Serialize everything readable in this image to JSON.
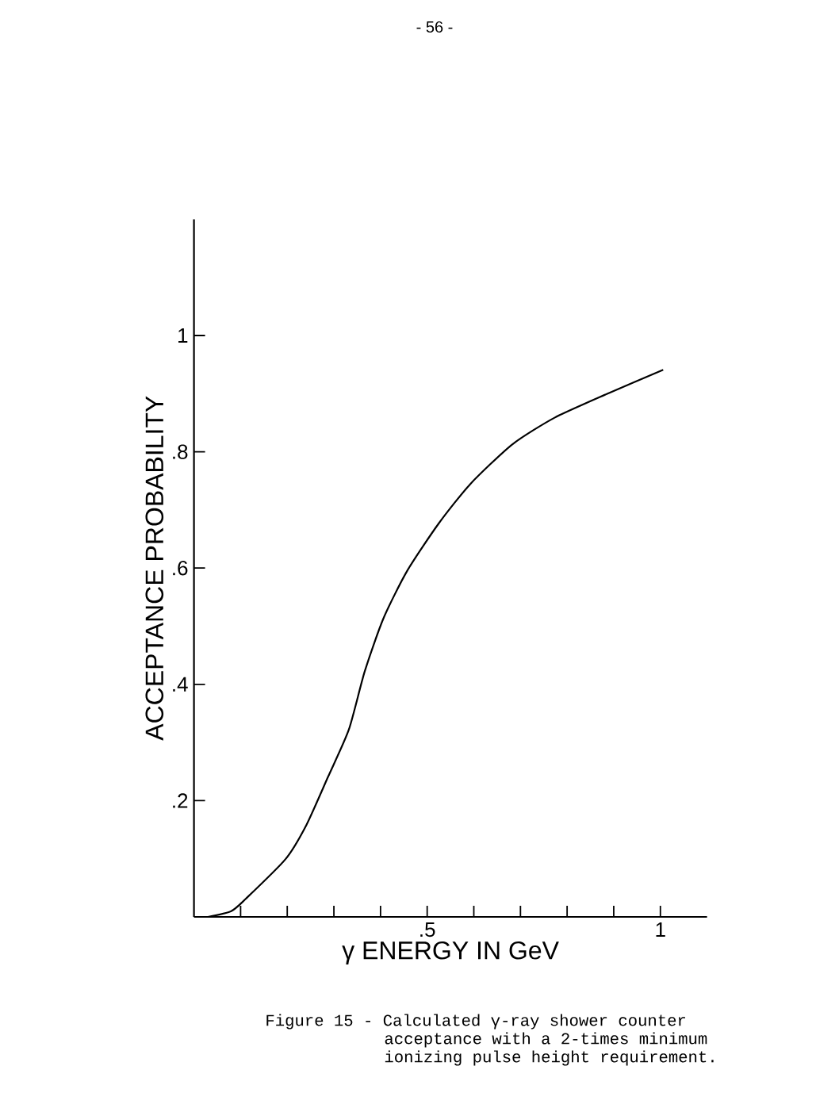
{
  "chart_data": {
    "type": "line",
    "xlabel": "γ ENERGY IN GeV",
    "ylabel": "ACCEPTANCE PROBABILITY",
    "annotations": [
      "- 56 -",
      "Figure 15 - Calculated γ-ray shower counter acceptance with a 2-times minimum ionizing pulse height requirement."
    ],
    "x": [
      0.03,
      0.08,
      0.111,
      0.196,
      0.241,
      0.287,
      0.332,
      0.366,
      0.406,
      0.457,
      0.525,
      0.593,
      0.683,
      0.774,
      0.887,
      1.006
    ],
    "values": [
      0,
      0.01,
      0.031,
      0.099,
      0.158,
      0.24,
      0.322,
      0.422,
      0.513,
      0.595,
      0.677,
      0.745,
      0.813,
      0.859,
      0.9,
      0.941
    ],
    "color": "#000000",
    "xlim": [
      0,
      1.1
    ],
    "ylim": [
      0,
      1.2
    ],
    "xticks": [
      {
        "value": 0.1,
        "label": null
      },
      {
        "value": 0.2,
        "label": null
      },
      {
        "value": 0.3,
        "label": null
      },
      {
        "value": 0.4,
        "label": null
      },
      {
        "value": 0.5,
        "label": ".5"
      },
      {
        "value": 0.6,
        "label": null
      },
      {
        "value": 0.7,
        "label": null
      },
      {
        "value": 0.8,
        "label": null
      },
      {
        "value": 0.9,
        "label": null
      },
      {
        "value": 1.0,
        "label": "1"
      }
    ],
    "yticks": [
      {
        "value": 0.2,
        "label": ".2"
      },
      {
        "value": 0.4,
        "label": ".4"
      },
      {
        "value": 0.6,
        "label": ".6"
      },
      {
        "value": 0.8,
        "label": ".8"
      },
      {
        "value": 1.0,
        "label": "1"
      }
    ],
    "marker": "none",
    "line_style": "solid"
  }
}
